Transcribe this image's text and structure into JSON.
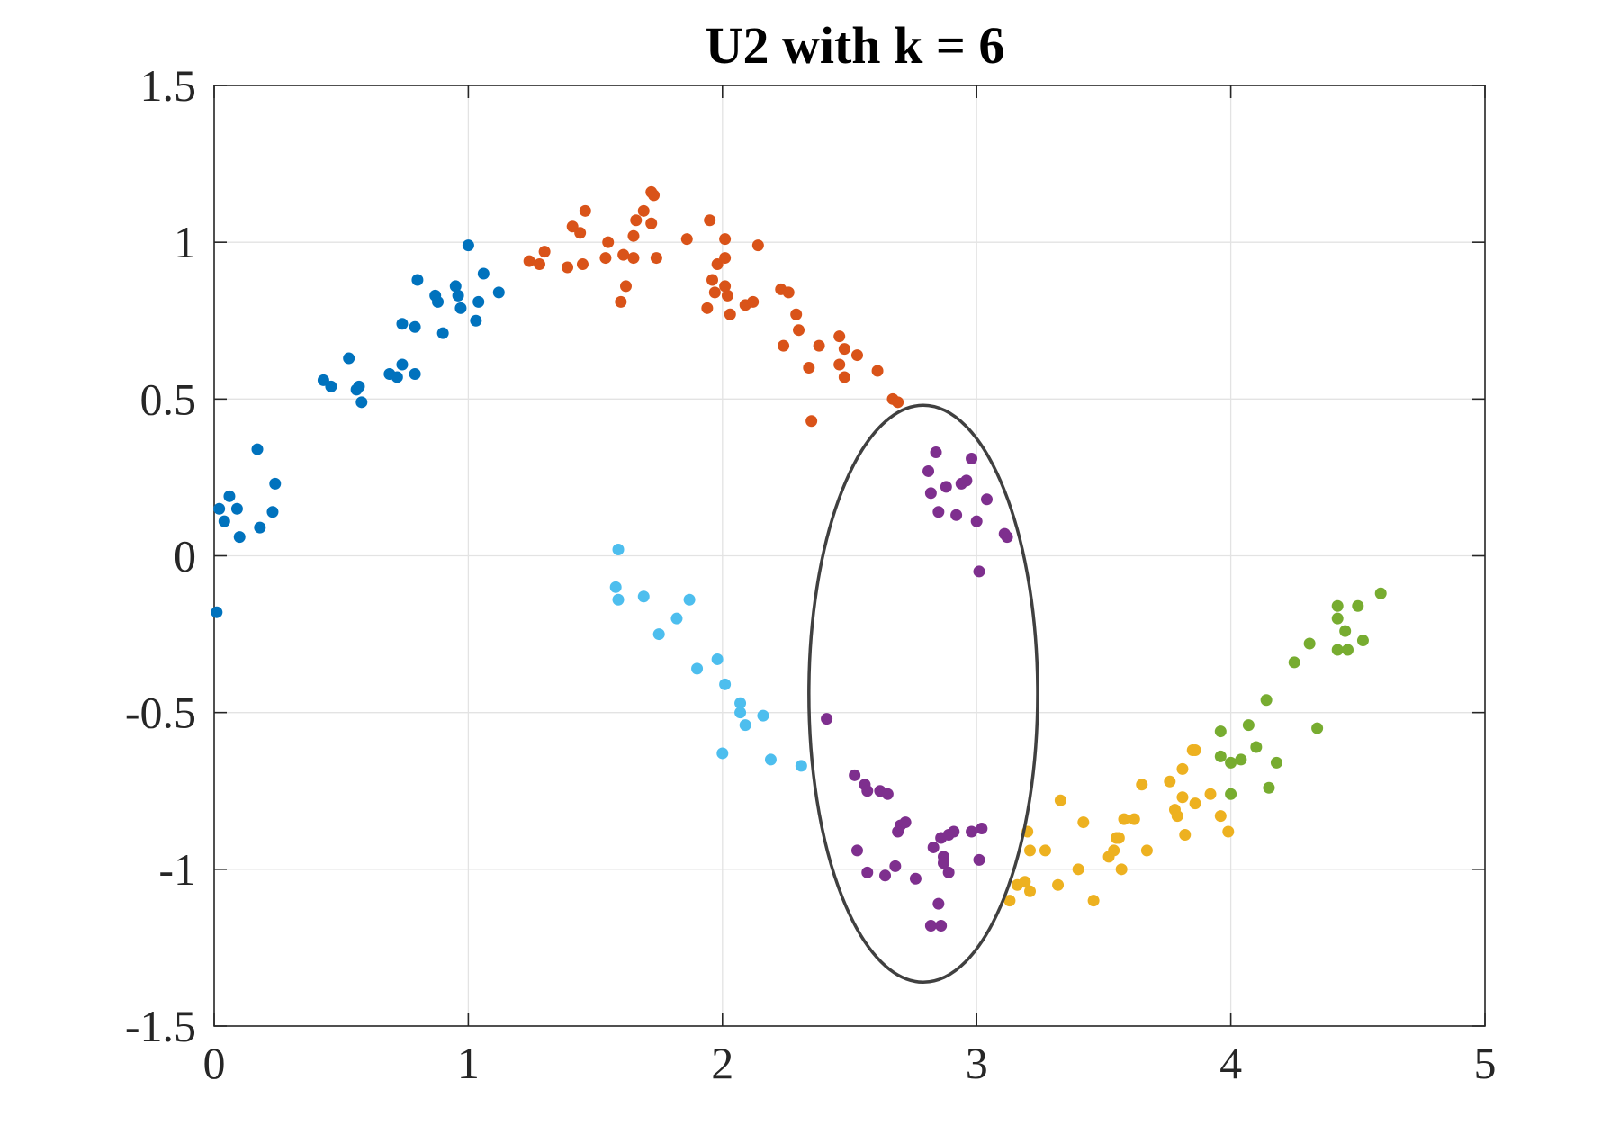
{
  "chart_data": {
    "type": "scatter",
    "title": "U2 with k = 6",
    "xlabel": "",
    "ylabel": "",
    "xlim": [
      0,
      5
    ],
    "ylim": [
      -1.5,
      1.5
    ],
    "xticks": [
      0,
      1,
      2,
      3,
      4,
      5
    ],
    "xtick_labels": [
      "0",
      "1",
      "2",
      "3",
      "4",
      "5"
    ],
    "yticks": [
      -1.5,
      -1,
      -0.5,
      0,
      0.5,
      1,
      1.5
    ],
    "ytick_labels": [
      "-1.5",
      "-1",
      "-0.5",
      "0",
      "0.5",
      "1",
      "1.5"
    ],
    "grid": true,
    "legend": "none",
    "series": [
      {
        "color": "#0072BD",
        "points": [
          [
            0.01,
            -0.18
          ],
          [
            0.02,
            0.15
          ],
          [
            0.04,
            0.11
          ],
          [
            0.06,
            0.19
          ],
          [
            0.09,
            0.15
          ],
          [
            0.1,
            0.06
          ],
          [
            0.17,
            0.34
          ],
          [
            0.18,
            0.09
          ],
          [
            0.23,
            0.14
          ],
          [
            0.24,
            0.23
          ],
          [
            0.43,
            0.56
          ],
          [
            0.46,
            0.54
          ],
          [
            0.53,
            0.63
          ],
          [
            0.56,
            0.53
          ],
          [
            0.57,
            0.54
          ],
          [
            0.58,
            0.49
          ],
          [
            0.69,
            0.58
          ],
          [
            0.72,
            0.57
          ],
          [
            0.74,
            0.61
          ],
          [
            0.74,
            0.74
          ],
          [
            0.79,
            0.73
          ],
          [
            0.79,
            0.58
          ],
          [
            0.8,
            0.88
          ],
          [
            0.87,
            0.83
          ],
          [
            0.88,
            0.81
          ],
          [
            0.9,
            0.71
          ],
          [
            0.95,
            0.86
          ],
          [
            0.96,
            0.83
          ],
          [
            0.97,
            0.79
          ],
          [
            1.0,
            0.99
          ],
          [
            1.03,
            0.75
          ],
          [
            1.04,
            0.81
          ],
          [
            1.06,
            0.9
          ],
          [
            1.12,
            0.84
          ]
        ]
      },
      {
        "color": "#D95319",
        "points": [
          [
            1.24,
            0.94
          ],
          [
            1.28,
            0.93
          ],
          [
            1.3,
            0.97
          ],
          [
            1.39,
            0.92
          ],
          [
            1.41,
            1.05
          ],
          [
            1.44,
            1.03
          ],
          [
            1.45,
            0.93
          ],
          [
            1.46,
            1.1
          ],
          [
            1.54,
            0.95
          ],
          [
            1.55,
            1.0
          ],
          [
            1.6,
            0.81
          ],
          [
            1.61,
            0.96
          ],
          [
            1.62,
            0.86
          ],
          [
            1.65,
            0.95
          ],
          [
            1.65,
            1.02
          ],
          [
            1.66,
            1.07
          ],
          [
            1.69,
            1.1
          ],
          [
            1.72,
            1.16
          ],
          [
            1.73,
            1.15
          ],
          [
            1.72,
            1.06
          ],
          [
            1.74,
            0.95
          ],
          [
            1.86,
            1.01
          ],
          [
            1.94,
            0.79
          ],
          [
            1.95,
            1.07
          ],
          [
            1.96,
            0.88
          ],
          [
            1.97,
            0.84
          ],
          [
            1.98,
            0.93
          ],
          [
            2.01,
            0.86
          ],
          [
            2.01,
            0.95
          ],
          [
            2.01,
            1.01
          ],
          [
            2.02,
            0.83
          ],
          [
            2.03,
            0.77
          ],
          [
            2.09,
            0.8
          ],
          [
            2.12,
            0.81
          ],
          [
            2.14,
            0.99
          ],
          [
            2.23,
            0.85
          ],
          [
            2.26,
            0.84
          ],
          [
            2.29,
            0.77
          ],
          [
            2.3,
            0.72
          ],
          [
            2.24,
            0.67
          ],
          [
            2.34,
            0.6
          ],
          [
            2.38,
            0.67
          ],
          [
            2.46,
            0.7
          ],
          [
            2.48,
            0.66
          ],
          [
            2.46,
            0.61
          ],
          [
            2.48,
            0.57
          ],
          [
            2.53,
            0.64
          ],
          [
            2.61,
            0.59
          ],
          [
            2.67,
            0.5
          ],
          [
            2.69,
            0.49
          ],
          [
            2.35,
            0.43
          ]
        ]
      },
      {
        "color": "#4DBEEE",
        "points": [
          [
            1.59,
            0.02
          ],
          [
            1.58,
            -0.1
          ],
          [
            1.59,
            -0.14
          ],
          [
            1.69,
            -0.13
          ],
          [
            1.75,
            -0.25
          ],
          [
            1.82,
            -0.2
          ],
          [
            1.87,
            -0.14
          ],
          [
            1.9,
            -0.36
          ],
          [
            1.98,
            -0.33
          ],
          [
            2.01,
            -0.41
          ],
          [
            2.07,
            -0.47
          ],
          [
            2.07,
            -0.5
          ],
          [
            2.09,
            -0.54
          ],
          [
            2.16,
            -0.51
          ],
          [
            2.19,
            -0.65
          ],
          [
            2.0,
            -0.63
          ],
          [
            2.31,
            -0.67
          ]
        ]
      },
      {
        "color": "#7E2F8E",
        "points": [
          [
            2.84,
            0.33
          ],
          [
            2.98,
            0.31
          ],
          [
            2.81,
            0.27
          ],
          [
            2.82,
            0.2
          ],
          [
            2.88,
            0.22
          ],
          [
            2.94,
            0.23
          ],
          [
            2.96,
            0.24
          ],
          [
            2.85,
            0.14
          ],
          [
            2.92,
            0.13
          ],
          [
            3.0,
            0.11
          ],
          [
            3.04,
            0.18
          ],
          [
            3.11,
            0.07
          ],
          [
            3.12,
            0.06
          ],
          [
            3.01,
            -0.05
          ],
          [
            2.41,
            -0.52
          ],
          [
            2.52,
            -0.7
          ],
          [
            2.56,
            -0.73
          ],
          [
            2.57,
            -0.75
          ],
          [
            2.62,
            -0.75
          ],
          [
            2.65,
            -0.76
          ],
          [
            2.7,
            -0.86
          ],
          [
            2.72,
            -0.85
          ],
          [
            2.69,
            -0.88
          ],
          [
            2.53,
            -0.94
          ],
          [
            2.57,
            -1.01
          ],
          [
            2.68,
            -0.99
          ],
          [
            2.64,
            -1.02
          ],
          [
            2.76,
            -1.03
          ],
          [
            2.83,
            -0.93
          ],
          [
            2.86,
            -0.9
          ],
          [
            2.87,
            -0.96
          ],
          [
            2.89,
            -0.89
          ],
          [
            2.91,
            -0.88
          ],
          [
            2.87,
            -0.98
          ],
          [
            2.89,
            -1.01
          ],
          [
            2.98,
            -0.88
          ],
          [
            3.02,
            -0.87
          ],
          [
            3.01,
            -0.97
          ],
          [
            2.85,
            -1.11
          ],
          [
            2.82,
            -1.18
          ],
          [
            2.86,
            -1.18
          ]
        ]
      },
      {
        "color": "#EDB120",
        "points": [
          [
            3.13,
            -1.1
          ],
          [
            3.16,
            -1.05
          ],
          [
            3.19,
            -1.04
          ],
          [
            3.2,
            -0.88
          ],
          [
            3.21,
            -0.94
          ],
          [
            3.21,
            -1.07
          ],
          [
            3.27,
            -0.94
          ],
          [
            3.33,
            -0.78
          ],
          [
            3.32,
            -1.05
          ],
          [
            3.4,
            -1.0
          ],
          [
            3.42,
            -0.85
          ],
          [
            3.46,
            -1.1
          ],
          [
            3.52,
            -0.96
          ],
          [
            3.54,
            -0.94
          ],
          [
            3.55,
            -0.9
          ],
          [
            3.56,
            -0.9
          ],
          [
            3.57,
            -1.0
          ],
          [
            3.58,
            -0.84
          ],
          [
            3.62,
            -0.84
          ],
          [
            3.65,
            -0.73
          ],
          [
            3.67,
            -0.94
          ],
          [
            3.76,
            -0.72
          ],
          [
            3.78,
            -0.81
          ],
          [
            3.79,
            -0.83
          ],
          [
            3.81,
            -0.68
          ],
          [
            3.81,
            -0.77
          ],
          [
            3.82,
            -0.89
          ],
          [
            3.85,
            -0.62
          ],
          [
            3.86,
            -0.62
          ],
          [
            3.86,
            -0.79
          ],
          [
            3.92,
            -0.76
          ],
          [
            3.96,
            -0.83
          ],
          [
            3.99,
            -0.88
          ]
        ]
      },
      {
        "color": "#77AC30",
        "points": [
          [
            3.96,
            -0.64
          ],
          [
            3.96,
            -0.56
          ],
          [
            4.0,
            -0.76
          ],
          [
            4.0,
            -0.66
          ],
          [
            4.04,
            -0.65
          ],
          [
            4.07,
            -0.54
          ],
          [
            4.1,
            -0.61
          ],
          [
            4.14,
            -0.46
          ],
          [
            4.15,
            -0.74
          ],
          [
            4.18,
            -0.66
          ],
          [
            4.25,
            -0.34
          ],
          [
            4.31,
            -0.28
          ],
          [
            4.34,
            -0.55
          ],
          [
            4.42,
            -0.16
          ],
          [
            4.42,
            -0.2
          ],
          [
            4.42,
            -0.3
          ],
          [
            4.45,
            -0.24
          ],
          [
            4.46,
            -0.3
          ],
          [
            4.5,
            -0.16
          ],
          [
            4.52,
            -0.27
          ],
          [
            4.59,
            -0.12
          ]
        ]
      }
    ],
    "annotations": [
      {
        "type": "ellipse",
        "center": [
          2.79,
          -0.44
        ],
        "radius_x": 0.45,
        "radius_y": 0.92,
        "color": "#404040"
      }
    ]
  }
}
